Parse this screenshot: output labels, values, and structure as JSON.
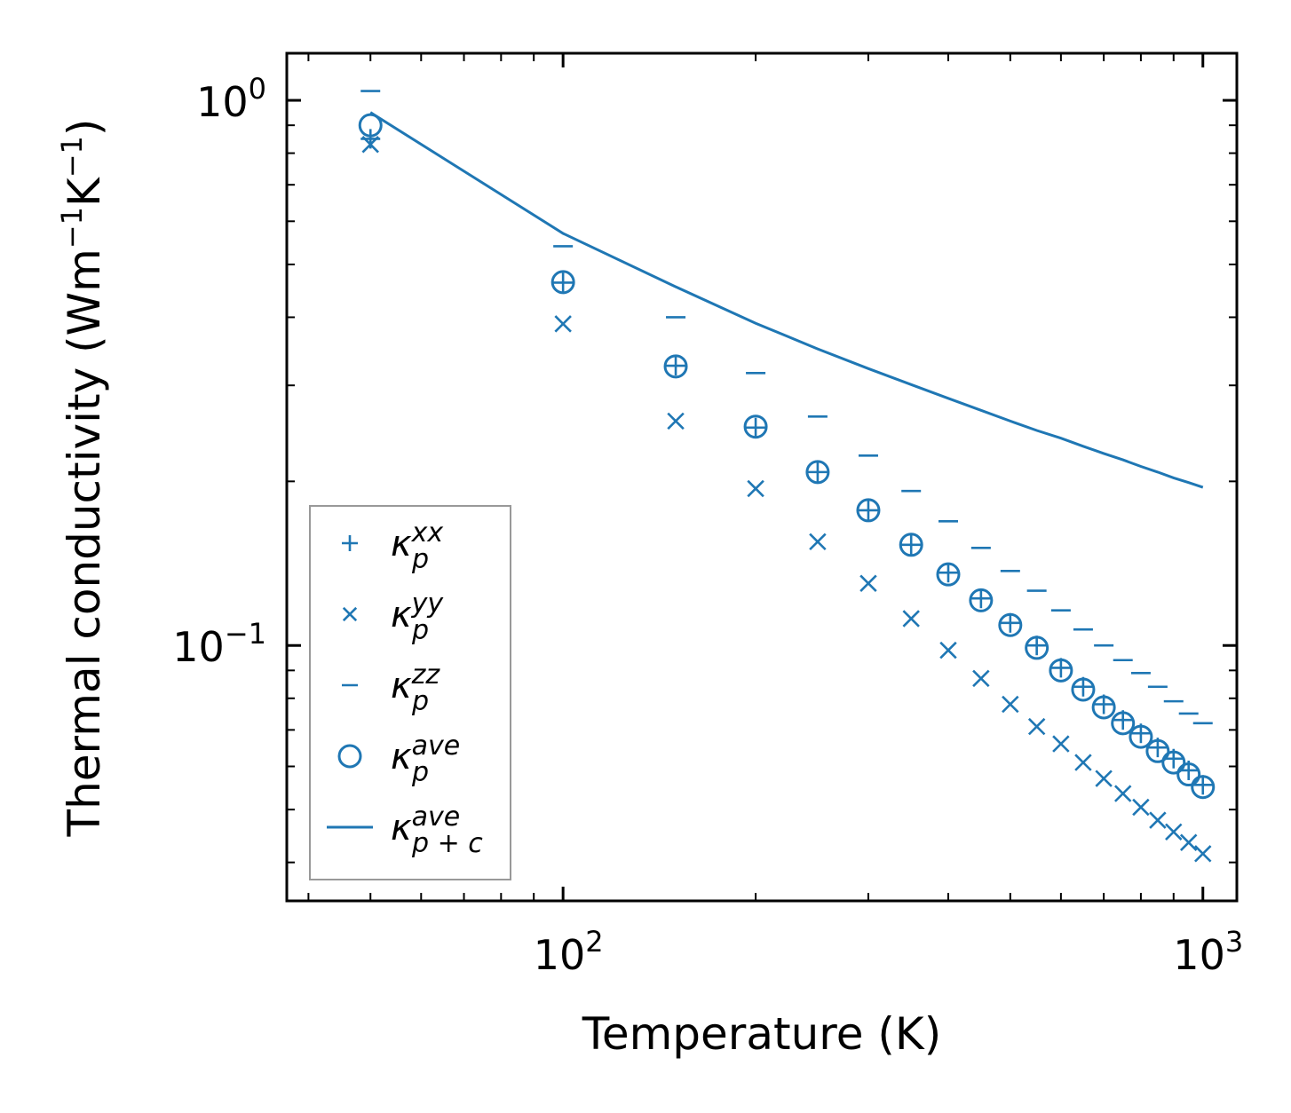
{
  "chart_data": {
    "type": "scatter",
    "title": "",
    "xlabel": "Temperature (K)",
    "ylabel_prefix": "Thermal conductivity (Wm",
    "ylabel_units": "Wm^-1K^-1",
    "x_scale": "log",
    "y_scale": "log",
    "xlim": [
      37,
      1130
    ],
    "ylim": [
      0.034,
      1.22
    ],
    "x_ticks": [
      {
        "value": 100,
        "base": "10",
        "exp": "2"
      },
      {
        "value": 1000,
        "base": "10",
        "exp": "3"
      }
    ],
    "y_ticks": [
      {
        "value": 0.1,
        "base": "10",
        "exp": "−1"
      },
      {
        "value": 1,
        "base": "10",
        "exp": "0"
      }
    ],
    "color": "#1f77b4",
    "x": [
      50,
      100,
      150,
      200,
      250,
      300,
      350,
      400,
      450,
      500,
      550,
      600,
      650,
      700,
      750,
      800,
      850,
      900,
      950,
      1000
    ],
    "series": [
      {
        "name": "kxx",
        "label_base": "κ",
        "label_sub": "p",
        "label_sup": "xx",
        "marker": "plus",
        "values": [
          0.85,
          0.463,
          0.326,
          0.251,
          0.208,
          0.177,
          0.153,
          0.136,
          0.122,
          0.11,
          0.1,
          0.091,
          0.084,
          0.078,
          0.073,
          0.069,
          0.065,
          0.062,
          0.059,
          0.0555
        ]
      },
      {
        "name": "kyy",
        "label_base": "κ",
        "label_sub": "p",
        "label_sup": "yy",
        "marker": "x",
        "values": [
          0.83,
          0.389,
          0.258,
          0.194,
          0.155,
          0.13,
          0.112,
          0.098,
          0.087,
          0.078,
          0.071,
          0.066,
          0.061,
          0.057,
          0.0535,
          0.0505,
          0.0478,
          0.0455,
          0.0435,
          0.0415
        ]
      },
      {
        "name": "kzz",
        "label_base": "κ",
        "label_sub": "p",
        "label_sup": "zz",
        "marker": "minus",
        "values": [
          1.04,
          0.54,
          0.4,
          0.316,
          0.263,
          0.223,
          0.192,
          0.169,
          0.151,
          0.137,
          0.126,
          0.116,
          0.107,
          0.1,
          0.094,
          0.089,
          0.084,
          0.079,
          0.075,
          0.072
        ]
      },
      {
        "name": "kave",
        "label_base": "κ",
        "label_sub": "p",
        "label_sup": "ave",
        "marker": "circle",
        "values": [
          0.9,
          0.464,
          0.325,
          0.252,
          0.208,
          0.177,
          0.153,
          0.135,
          0.121,
          0.109,
          0.099,
          0.09,
          0.083,
          0.077,
          0.072,
          0.068,
          0.064,
          0.061,
          0.058,
          0.055
        ]
      },
      {
        "name": "kpc",
        "label_base": "κ",
        "label_sub": "p + c",
        "label_sup": "ave",
        "marker": "line",
        "values": [
          0.95,
          0.57,
          0.455,
          0.39,
          0.35,
          0.322,
          0.301,
          0.284,
          0.27,
          0.258,
          0.248,
          0.24,
          0.232,
          0.225,
          0.219,
          0.213,
          0.208,
          0.203,
          0.199,
          0.195
        ]
      }
    ],
    "legend_position": "lower-left",
    "grid": false
  }
}
